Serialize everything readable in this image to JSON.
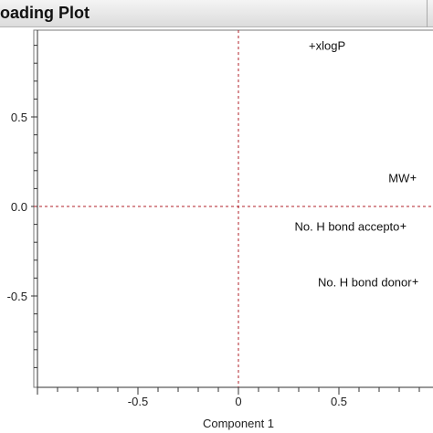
{
  "window": {
    "title": "oading Plot"
  },
  "chart_data": {
    "type": "scatter",
    "title": "oading Plot",
    "xlabel": "Component 1",
    "ylabel": "",
    "xlim": [
      -1.0,
      1.0
    ],
    "ylim": [
      -1.0,
      1.0
    ],
    "xticks": [
      -0.5,
      0,
      0.5
    ],
    "xtick_labels": [
      "-0.5",
      "0",
      "0.5"
    ],
    "yticks": [
      0.5,
      0,
      -0.5
    ],
    "ytick_labels": [
      "0.5",
      "0.0",
      "-0.5"
    ],
    "reference_lines": {
      "x": 0,
      "y": 0,
      "style": "dashed",
      "color": "#b0202a"
    },
    "grid": false,
    "points": [
      {
        "label": "+xlogP",
        "x": 0.35,
        "y": 0.9
      },
      {
        "label": "MW",
        "x": 0.87,
        "y": 0.16
      },
      {
        "label": "No. H bond accepto",
        "x": 0.82,
        "y": -0.11
      },
      {
        "label": "No. H bond donor",
        "x": 0.88,
        "y": -0.42
      }
    ]
  }
}
